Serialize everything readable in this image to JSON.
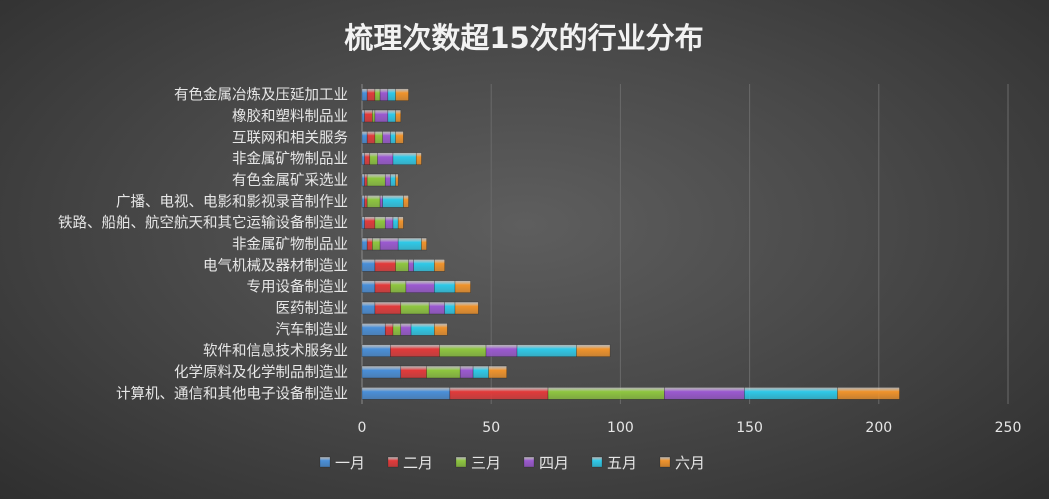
{
  "chart_data": {
    "type": "bar",
    "orientation": "horizontal",
    "stacked": true,
    "title": "梳理次数超15次的行业分布",
    "categories": [
      "计算机、通信和其他电子设备制造业",
      "化学原料及化学制品制造业",
      "软件和信息技术服务业",
      "汽车制造业",
      "医药制造业",
      "专用设备制造业",
      "电气机械及器材制造业",
      "非金属矿物制品业",
      "铁路、船舶、航空航天和其它运输设备制造业",
      "广播、电视、电影和影视录音制作业",
      "有色金属矿采选业",
      "非金属矿物制品业",
      "互联网和相关服务",
      "橡胶和塑料制品业",
      "有色金属冶炼及压延加工业"
    ],
    "series": [
      {
        "name": "一月",
        "color": "#4a8fd8",
        "values": [
          34,
          15,
          11,
          9,
          5,
          5,
          5,
          2,
          1,
          1,
          1,
          1,
          2,
          1,
          2
        ]
      },
      {
        "name": "二月",
        "color": "#e23a3a",
        "values": [
          38,
          10,
          19,
          3,
          10,
          6,
          8,
          2,
          4,
          1,
          1,
          2,
          3,
          3,
          3
        ]
      },
      {
        "name": "三月",
        "color": "#8ec63f",
        "values": [
          45,
          13,
          18,
          3,
          11,
          6,
          5,
          3,
          4,
          5,
          7,
          3,
          3,
          1,
          2
        ]
      },
      {
        "name": "四月",
        "color": "#9b59d0",
        "values": [
          31,
          5,
          12,
          4,
          6,
          11,
          2,
          7,
          3,
          1,
          2,
          6,
          3,
          5,
          3
        ]
      },
      {
        "name": "五月",
        "color": "#2ec9e8",
        "values": [
          36,
          6,
          23,
          9,
          4,
          8,
          8,
          9,
          2,
          8,
          2,
          9,
          2,
          3,
          3
        ]
      },
      {
        "name": "六月",
        "color": "#f0932b",
        "values": [
          24,
          7,
          13,
          5,
          9,
          6,
          4,
          2,
          2,
          2,
          1,
          2,
          3,
          2,
          5
        ]
      }
    ],
    "xlim": [
      0,
      250
    ],
    "xticks": [
      0,
      50,
      100,
      150,
      200,
      250
    ],
    "grid": true,
    "legend": "bottom"
  }
}
